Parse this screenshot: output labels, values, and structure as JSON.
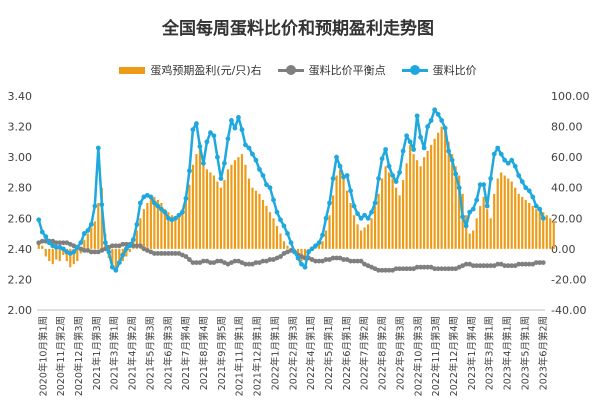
{
  "chart_data": {
    "type": "bar+line",
    "title": "全国每周蛋料比价和预期盈利走势图",
    "legend": [
      "蛋鸡预期盈利(元/只)右",
      "蛋料比价平衡点",
      "蛋料比价"
    ],
    "left_axis": {
      "ticks": [
        "2.00",
        "2.20",
        "2.40",
        "2.60",
        "2.80",
        "3.00",
        "3.20",
        "3.40"
      ],
      "ylim": [
        2.0,
        3.4
      ]
    },
    "right_axis": {
      "ticks": [
        "-40.00",
        "-20.00",
        "0.00",
        "20.00",
        "40.00",
        "60.00",
        "80.00",
        "100.00"
      ],
      "ylim": [
        -40,
        100
      ]
    },
    "x_ticks": [
      "2020年10月第1周",
      "2020年11月第2周",
      "2020年12月第3周",
      "2021年1月第3周",
      "2021年3月第1周",
      "2021年4月第2周",
      "2021年5月第3周",
      "2021年6月第3周",
      "2021年7月第4周",
      "2021年8月第4周",
      "2021年9月第5周",
      "2021年11月第1周",
      "2021年12月第1周",
      "2022年1月第1周",
      "2022年2月第3周",
      "2022年4月第1周",
      "2022年5月第1周",
      "2022年6月第1周",
      "2022年7月第2周",
      "2022年8月第2周",
      "2022年9月第3周",
      "2022年10月第3周",
      "2022年11月第3周",
      "2022年12月第4周",
      "2023年1月第4周",
      "2023年3月第1周",
      "2023年4月第1周",
      "2023年5月第1周",
      "2023年6月第2周"
    ],
    "n_weeks": 145,
    "series": [
      {
        "name": "蛋鸡预期盈利(元/只)右",
        "axis": "right",
        "color": "#ED9B16",
        "values": [
          4,
          2,
          -5,
          -8,
          -10,
          -7,
          -8,
          -4,
          -8,
          -12,
          -10,
          -8,
          -3,
          6,
          10,
          14,
          18,
          30,
          40,
          10,
          -6,
          -12,
          -14,
          -10,
          -8,
          -5,
          -2,
          5,
          12,
          20,
          26,
          30,
          34,
          34,
          32,
          30,
          26,
          24,
          22,
          20,
          22,
          26,
          34,
          42,
          55,
          62,
          70,
          60,
          52,
          50,
          48,
          44,
          40,
          45,
          52,
          55,
          58,
          60,
          62,
          55,
          46,
          40,
          38,
          36,
          32,
          28,
          24,
          20,
          15,
          10,
          5,
          2,
          0,
          -2,
          -5,
          -8,
          -6,
          -3,
          0,
          2,
          3,
          5,
          12,
          22,
          35,
          48,
          52,
          46,
          38,
          30,
          22,
          16,
          12,
          14,
          16,
          20,
          28,
          36,
          46,
          54,
          50,
          46,
          40,
          35,
          45,
          56,
          68,
          62,
          58,
          54,
          60,
          64,
          68,
          72,
          76,
          80,
          78,
          70,
          62,
          54,
          48,
          36,
          22,
          10,
          12,
          20,
          28,
          34,
          26,
          20,
          36,
          46,
          50,
          48,
          46,
          44,
          40,
          36,
          34,
          32,
          30,
          28,
          26,
          25,
          24,
          22,
          20,
          18
        ]
      },
      {
        "name": "蛋料比价平衡点",
        "axis": "left",
        "color": "#7F7F7F",
        "values": [
          2.44,
          2.45,
          2.45,
          2.45,
          2.45,
          2.44,
          2.44,
          2.44,
          2.44,
          2.43,
          2.42,
          2.41,
          2.4,
          2.39,
          2.39,
          2.38,
          2.38,
          2.38,
          2.39,
          2.4,
          2.41,
          2.42,
          2.42,
          2.42,
          2.43,
          2.43,
          2.43,
          2.42,
          2.42,
          2.42,
          2.4,
          2.39,
          2.38,
          2.37,
          2.37,
          2.37,
          2.37,
          2.37,
          2.37,
          2.37,
          2.37,
          2.36,
          2.35,
          2.33,
          2.31,
          2.31,
          2.31,
          2.32,
          2.32,
          2.31,
          2.31,
          2.32,
          2.32,
          2.31,
          2.3,
          2.31,
          2.32,
          2.32,
          2.31,
          2.3,
          2.3,
          2.3,
          2.31,
          2.31,
          2.32,
          2.32,
          2.33,
          2.33,
          2.34,
          2.35,
          2.37,
          2.38,
          2.39,
          2.38,
          2.36,
          2.35,
          2.34,
          2.34,
          2.33,
          2.32,
          2.32,
          2.32,
          2.33,
          2.33,
          2.34,
          2.34,
          2.34,
          2.33,
          2.33,
          2.32,
          2.32,
          2.32,
          2.32,
          2.3,
          2.29,
          2.28,
          2.27,
          2.26,
          2.26,
          2.26,
          2.26,
          2.26,
          2.27,
          2.27,
          2.27,
          2.27,
          2.27,
          2.27,
          2.28,
          2.28,
          2.28,
          2.28,
          2.28,
          2.27,
          2.27,
          2.27,
          2.27,
          2.27,
          2.27,
          2.27,
          2.28,
          2.29,
          2.3,
          2.3,
          2.29,
          2.29,
          2.29,
          2.29,
          2.29,
          2.29,
          2.29,
          2.3,
          2.3,
          2.29,
          2.29,
          2.29,
          2.29,
          2.3,
          2.3,
          2.3,
          2.3,
          2.3,
          2.31,
          2.31,
          2.31
        ]
      },
      {
        "name": "蛋料比价",
        "axis": "left",
        "color": "#1FA8DE",
        "values": [
          2.59,
          2.51,
          2.48,
          2.44,
          2.42,
          2.41,
          2.41,
          2.4,
          2.38,
          2.37,
          2.38,
          2.41,
          2.44,
          2.5,
          2.52,
          2.56,
          2.68,
          3.06,
          2.69,
          2.44,
          2.38,
          2.28,
          2.26,
          2.31,
          2.36,
          2.4,
          2.42,
          2.46,
          2.56,
          2.7,
          2.74,
          2.75,
          2.74,
          2.7,
          2.68,
          2.66,
          2.64,
          2.6,
          2.59,
          2.6,
          2.62,
          2.64,
          2.73,
          2.91,
          3.18,
          3.22,
          3.07,
          2.96,
          3.1,
          3.16,
          3.14,
          3.0,
          2.86,
          2.96,
          3.12,
          3.24,
          3.19,
          3.26,
          3.18,
          3.08,
          3.06,
          3.02,
          2.98,
          2.92,
          2.88,
          2.82,
          2.8,
          2.72,
          2.64,
          2.59,
          2.55,
          2.5,
          2.44,
          2.38,
          2.34,
          2.3,
          2.28,
          2.38,
          2.4,
          2.42,
          2.44,
          2.49,
          2.6,
          2.7,
          2.86,
          3.0,
          2.94,
          2.87,
          2.88,
          2.78,
          2.68,
          2.63,
          2.6,
          2.62,
          2.6,
          2.64,
          2.7,
          2.86,
          2.99,
          3.05,
          2.94,
          2.88,
          2.84,
          2.9,
          3.04,
          3.14,
          3.1,
          3.05,
          3.27,
          3.13,
          3.06,
          3.2,
          3.24,
          3.31,
          3.28,
          3.24,
          3.19,
          3.04,
          2.98,
          2.89,
          2.8,
          2.61,
          2.55,
          2.64,
          2.66,
          2.72,
          2.82,
          2.82,
          2.68,
          2.86,
          3.02,
          3.06,
          3.02,
          2.98,
          2.96,
          2.98,
          2.94,
          2.88,
          2.84,
          2.8,
          2.78,
          2.74,
          2.68,
          2.66,
          2.6
        ]
      }
    ]
  }
}
